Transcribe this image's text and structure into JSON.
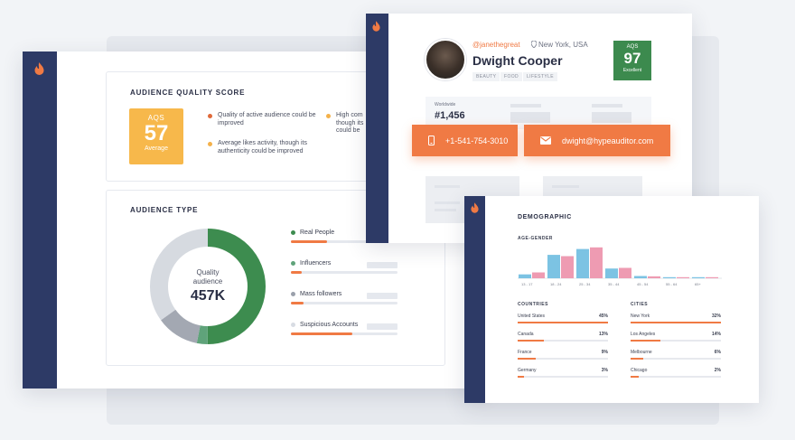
{
  "main_card": {
    "aqs_section": {
      "title": "AUDIENCE QUALITY SCORE",
      "score_label": "AQS",
      "score": "57",
      "rating": "Average",
      "notes": [
        {
          "text": "Quality of active audience could be improved",
          "color": "#e06a3a"
        },
        {
          "text": "Average likes activity, though its authenticity could be improved",
          "color": "#f4b14a"
        },
        {
          "text": "High comp... though its... could be...",
          "color": "#f4b14a"
        }
      ],
      "truncated_note_lines": [
        "High com",
        "though its",
        "could be"
      ]
    },
    "audience_type": {
      "title": "AUDIENCE TYPE",
      "donut_center_label": "Quality audience",
      "donut_center_value": "457K",
      "legend": [
        {
          "label": "Real People",
          "color": "#3d8c4f",
          "fill": 0.34
        },
        {
          "label": "Influencers",
          "color": "#5fa37a",
          "fill": 0.1
        },
        {
          "label": "Mass followers",
          "color": "#9aa0ab",
          "fill": 0.12
        },
        {
          "label": "Suspicious Accounts",
          "color": "#d8dce3",
          "fill": 0.58
        }
      ],
      "segments": [
        {
          "name": "Real People",
          "share": 0.5,
          "color": "#3d8c4f"
        },
        {
          "name": "Influencers",
          "share": 0.03,
          "color": "#5fa37a"
        },
        {
          "name": "Mass followers",
          "share": 0.12,
          "color": "#a3a8b2"
        },
        {
          "name": "Suspicious Accounts",
          "share": 0.35,
          "color": "#d6dae0"
        }
      ]
    }
  },
  "profile_card": {
    "handle": "@janethegreat",
    "location": "New York, USA",
    "name": "Dwight Cooper",
    "tags": [
      "BEAUTY",
      "FOOD",
      "LIFESTYLE"
    ],
    "aqs_label": "AQS",
    "aqs_score": "97",
    "aqs_rating": "Excellent",
    "rank_label": "Worldwide",
    "rank_value": "#1,456",
    "phone": "+1-541-754-3010",
    "email": "dwight@hypeauditor.com"
  },
  "demographic_card": {
    "title": "DEMOGRAPHIC",
    "age_gender_title": "AGE-GENDER",
    "colors": {
      "male": "#7cc3e3",
      "female": "#ee9bb2"
    },
    "countries_title": "COUNTRIES",
    "cities_title": "CITIES",
    "countries": [
      {
        "name": "United States",
        "value": "45%",
        "fill": 1.0
      },
      {
        "name": "Canada",
        "value": "13%",
        "fill": 0.29
      },
      {
        "name": "France",
        "value": "9%",
        "fill": 0.2
      },
      {
        "name": "Germany",
        "value": "3%",
        "fill": 0.07
      }
    ],
    "cities": [
      {
        "name": "New York",
        "value": "32%",
        "fill": 1.0
      },
      {
        "name": "Los Angeles",
        "value": "14%",
        "fill": 0.33
      },
      {
        "name": "Melbourne",
        "value": "6%",
        "fill": 0.14
      },
      {
        "name": "Chicago",
        "value": "2%",
        "fill": 0.09
      }
    ]
  },
  "chart_data": {
    "type": "bar",
    "categories": [
      "13 - 17",
      "18 - 24",
      "25 - 34",
      "35 - 44",
      "45 - 54",
      "55 - 64",
      "65+"
    ],
    "series": [
      {
        "values": [
          0.12,
          0.72,
          0.9,
          0.3,
          0.07,
          0.03,
          0.02
        ]
      },
      {
        "values": [
          0.18,
          0.68,
          0.95,
          0.32,
          0.06,
          0.03,
          0.03
        ]
      }
    ],
    "ylim": [
      0,
      1
    ]
  }
}
